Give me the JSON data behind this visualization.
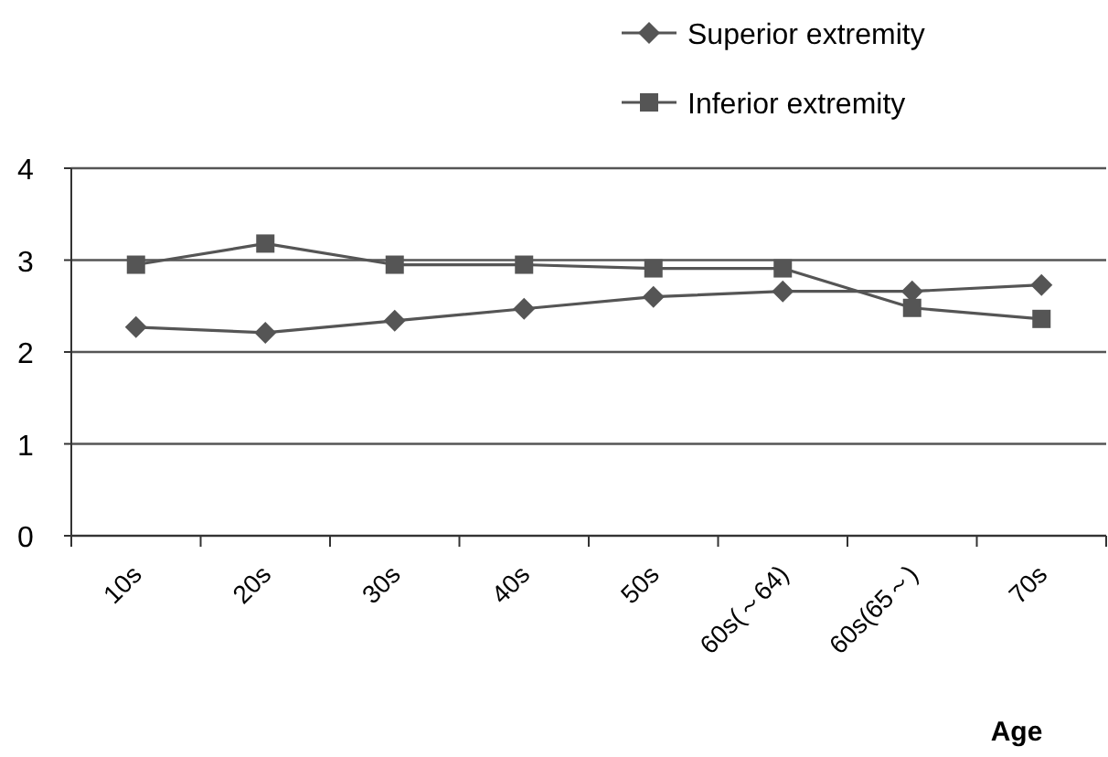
{
  "chart_data": {
    "type": "line",
    "xlabel": "Age",
    "categories": [
      "10s",
      "20s",
      "30s",
      "40s",
      "50s",
      "60s(～64)",
      "60s(65～)",
      "70s"
    ],
    "series": [
      {
        "name": "Superior extremity",
        "color": "#555555",
        "marker": "diamond",
        "values": [
          2.27,
          2.21,
          2.34,
          2.47,
          2.6,
          2.66,
          2.66,
          2.73
        ]
      },
      {
        "name": "Inferior extremity",
        "color": "#555555",
        "marker": "square",
        "values": [
          2.95,
          3.18,
          2.95,
          2.95,
          2.91,
          2.91,
          2.48,
          2.36
        ]
      }
    ],
    "ylim": [
      0,
      4
    ],
    "yticks": [
      0,
      1,
      2,
      3,
      4
    ],
    "grid": "y",
    "legend": "top right"
  }
}
